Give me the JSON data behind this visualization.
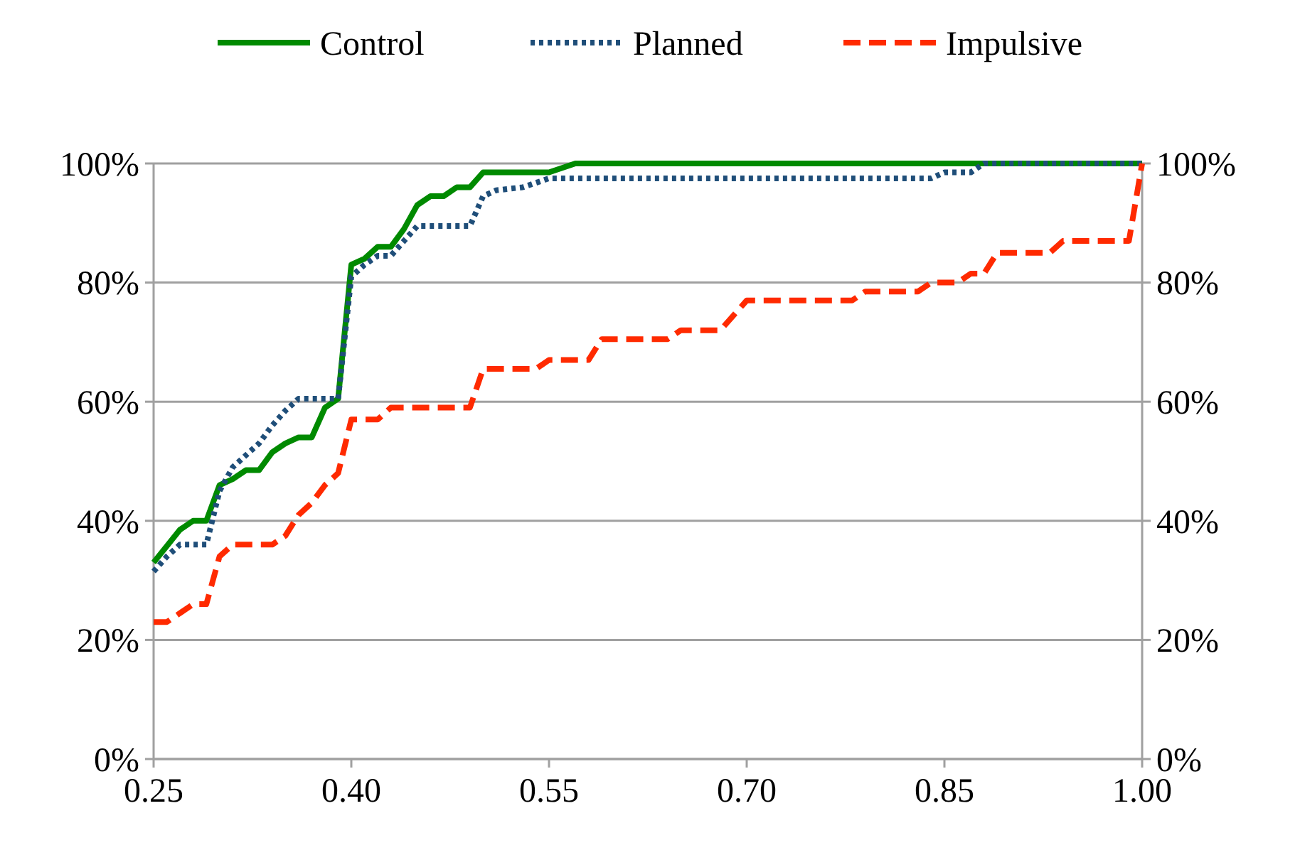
{
  "chart_data": {
    "type": "line",
    "xlim": [
      0.25,
      1.0
    ],
    "xticks": [
      {
        "value": 0.25,
        "label": "0.25"
      },
      {
        "value": 0.4,
        "label": "0.40"
      },
      {
        "value": 0.55,
        "label": "0.55"
      },
      {
        "value": 0.7,
        "label": "0.70"
      },
      {
        "value": 0.85,
        "label": "0.85"
      },
      {
        "value": 1.0,
        "label": "1.00"
      }
    ],
    "ylim": [
      0,
      100
    ],
    "yticks": [
      {
        "value": 0,
        "label": "0%"
      },
      {
        "value": 20,
        "label": "20%"
      },
      {
        "value": 40,
        "label": "40%"
      },
      {
        "value": 60,
        "label": "60%"
      },
      {
        "value": 80,
        "label": "80%"
      },
      {
        "value": 100,
        "label": "100%"
      }
    ],
    "y2lim": [
      0,
      100
    ],
    "y2ticks": [
      {
        "value": 0,
        "label": "0%"
      },
      {
        "value": 20,
        "label": "20%"
      },
      {
        "value": 40,
        "label": "40%"
      },
      {
        "value": 60,
        "label": "60%"
      },
      {
        "value": 80,
        "label": "80%"
      },
      {
        "value": 100,
        "label": "100%"
      }
    ],
    "grid": "y",
    "legend": "top",
    "series": [
      {
        "name": "Control",
        "color": "#008a00",
        "line_style": "solid",
        "x": [
          0.25,
          0.27,
          0.28,
          0.29,
          0.3,
          0.31,
          0.32,
          0.33,
          0.34,
          0.35,
          0.36,
          0.37,
          0.38,
          0.39,
          0.4,
          0.41,
          0.42,
          0.43,
          0.44,
          0.45,
          0.46,
          0.47,
          0.48,
          0.49,
          0.5,
          0.55,
          0.57,
          1.0
        ],
        "values": [
          33,
          38.5,
          40,
          40,
          46,
          47,
          48.5,
          48.5,
          51.5,
          53,
          54,
          54,
          59,
          60.5,
          83,
          84,
          86,
          86,
          89,
          93,
          94.5,
          94.5,
          96,
          96,
          98.5,
          98.5,
          100,
          100
        ]
      },
      {
        "name": "Planned",
        "color": "#1f4e79",
        "line_style": "dotted",
        "x": [
          0.25,
          0.26,
          0.27,
          0.29,
          0.3,
          0.31,
          0.32,
          0.33,
          0.34,
          0.35,
          0.36,
          0.39,
          0.4,
          0.41,
          0.42,
          0.43,
          0.44,
          0.45,
          0.49,
          0.5,
          0.51,
          0.53,
          0.55,
          0.84,
          0.85,
          0.87,
          0.88,
          1.0
        ],
        "values": [
          31.5,
          34,
          36,
          36,
          45,
          49,
          51,
          53,
          56,
          58.5,
          60.5,
          60.5,
          81,
          83,
          84.5,
          84.5,
          87,
          89.5,
          89.5,
          94.5,
          95.5,
          96,
          97.5,
          97.5,
          98.5,
          98.5,
          100,
          100
        ]
      },
      {
        "name": "Impulsive",
        "color": "#ff2a00",
        "line_style": "dashed",
        "x": [
          0.25,
          0.26,
          0.28,
          0.29,
          0.3,
          0.31,
          0.34,
          0.35,
          0.36,
          0.37,
          0.38,
          0.39,
          0.4,
          0.42,
          0.43,
          0.49,
          0.5,
          0.54,
          0.55,
          0.58,
          0.59,
          0.64,
          0.65,
          0.68,
          0.7,
          0.78,
          0.79,
          0.83,
          0.84,
          0.86,
          0.87,
          0.88,
          0.89,
          0.93,
          0.94,
          0.99,
          1.0
        ],
        "values": [
          23,
          23,
          26,
          26,
          34,
          36,
          36,
          37.5,
          41,
          43,
          46,
          48,
          57,
          57,
          59,
          59,
          65.5,
          65.5,
          67,
          67,
          70.5,
          70.5,
          72,
          72,
          77,
          77,
          78.5,
          78.5,
          80,
          80,
          81.5,
          81.5,
          85,
          85,
          87,
          87,
          100
        ]
      }
    ]
  }
}
